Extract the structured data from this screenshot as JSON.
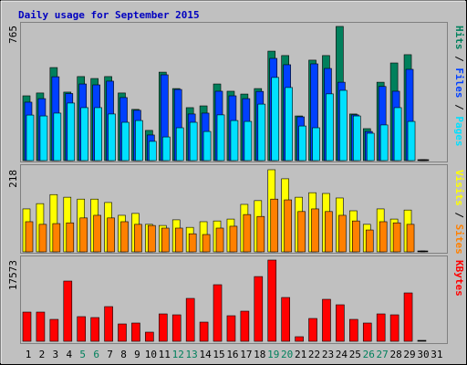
{
  "title": "Daily usage for September 2015",
  "chart_data": [
    {
      "type": "bar",
      "ylim": [
        0,
        765
      ],
      "yticks": [
        765
      ],
      "series": [
        {
          "name": "Hits",
          "color": "#00805c",
          "values": [
            367,
            383,
            527,
            388,
            476,
            465,
            476,
            383,
            290,
            171,
            501,
            408,
            300,
            310,
            434,
            393,
            377,
            408,
            620,
            595,
            253,
            569,
            595,
            760,
            264,
            181,
            444,
            553,
            600,
            0,
            null
          ]
        },
        {
          "name": "Files",
          "color": "#0040ff",
          "values": [
            331,
            351,
            475,
            380,
            434,
            429,
            450,
            357,
            285,
            145,
            486,
            403,
            264,
            269,
            393,
            367,
            351,
            392,
            579,
            543,
            248,
            548,
            522,
            444,
            259,
            165,
            420,
            393,
            517,
            0,
            null
          ]
        },
        {
          "name": "Pages",
          "color": "#00e0ff",
          "values": [
            258,
            253,
            269,
            326,
            300,
            300,
            264,
            217,
            227,
            109,
            134,
            186,
            217,
            165,
            259,
            227,
            222,
            320,
            471,
            414,
            196,
            186,
            378,
            398,
            253,
            155,
            202,
            300,
            222,
            0,
            null
          ]
        }
      ]
    },
    {
      "type": "bar",
      "ylim": [
        0,
        218
      ],
      "yticks": [
        218
      ],
      "series": [
        {
          "name": "Visits",
          "color": "#ffff00",
          "values": [
            114,
            128,
            152,
            145,
            140,
            140,
            131,
            97,
            102,
            73,
            70,
            85,
            65,
            80,
            82,
            87,
            126,
            136,
            218,
            194,
            145,
            157,
            155,
            143,
            109,
            73,
            114,
            87,
            111,
            0,
            null
          ]
        },
        {
          "name": "Sites",
          "color": "#ff8000",
          "values": [
            80,
            73,
            75,
            77,
            90,
            97,
            90,
            80,
            73,
            70,
            63,
            63,
            48,
            46,
            63,
            68,
            99,
            94,
            140,
            138,
            107,
            114,
            107,
            97,
            82,
            58,
            80,
            77,
            73,
            0,
            null
          ]
        }
      ]
    },
    {
      "type": "bar",
      "ylim": [
        0,
        17573
      ],
      "yticks": [
        17573
      ],
      "categories": [
        "1",
        "2",
        "3",
        "4",
        "5",
        "6",
        "7",
        "8",
        "9",
        "10",
        "11",
        "12",
        "13",
        "14",
        "15",
        "16",
        "17",
        "18",
        "19",
        "20",
        "21",
        "22",
        "23",
        "24",
        "25",
        "26",
        "27",
        "28",
        "29",
        "30",
        "31"
      ],
      "weekend_days": [
        4,
        5,
        11,
        12,
        18,
        19,
        25,
        26
      ],
      "weekend_color": "#00805c",
      "series": [
        {
          "name": "KBytes",
          "color": "#ff0000",
          "values": [
            6316,
            6316,
            4738,
            13029,
            5330,
            5132,
            7501,
            3750,
            3948,
            1974,
            5922,
            5724,
            9277,
            4145,
            12239,
            5527,
            6514,
            14003,
            17573,
            9475,
            987,
            4935,
            9080,
            7896,
            4738,
            3948,
            5922,
            5724,
            10462,
            0,
            null
          ]
        }
      ]
    }
  ]
}
